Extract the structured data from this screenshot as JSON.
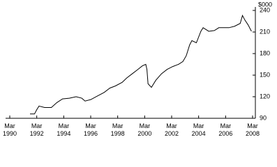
{
  "chart_data": {
    "type": "line",
    "unit_label": "$000",
    "x": [
      "1991-09",
      "1992-01",
      "1992-03",
      "1992-05",
      "1992-10",
      "1993-04",
      "1993-09",
      "1994-02",
      "1994-08",
      "1995-02",
      "1995-07",
      "1995-10",
      "1996-03",
      "1996-09",
      "1997-03",
      "1997-08",
      "1998-01",
      "1998-07",
      "1998-11",
      "1999-04",
      "1999-09",
      "2000-01",
      "2000-04",
      "2000-05",
      "2000-06",
      "2000-09",
      "2001-01",
      "2001-06",
      "2001-11",
      "2002-04",
      "2002-09",
      "2003-01",
      "2003-04",
      "2003-07",
      "2003-09",
      "2004-01",
      "2004-05",
      "2004-07",
      "2004-12",
      "2005-05",
      "2005-09",
      "2006-01",
      "2006-06",
      "2006-11",
      "2007-04",
      "2007-06",
      "2007-08",
      "2007-11",
      "2008-02"
    ],
    "series": [
      {
        "color": "#000000",
        "values": [
          96,
          96,
          102,
          107,
          105,
          105,
          112,
          117,
          118,
          120,
          118,
          114,
          116,
          121,
          126,
          132,
          135,
          140,
          146,
          152,
          158,
          163,
          165,
          158,
          138,
          133,
          143,
          152,
          158,
          162,
          165,
          169,
          177,
          192,
          198,
          195,
          211,
          216,
          211,
          212,
          216,
          216,
          216,
          218,
          222,
          233,
          227,
          220,
          211
        ]
      }
    ],
    "xlim": [
      "1990-03",
      "2008-03"
    ],
    "xticks": [
      {
        "value": "1990-03",
        "label": "Mar\n1990"
      },
      {
        "value": "1992-03",
        "label": "Mar\n1992"
      },
      {
        "value": "1994-03",
        "label": "Mar\n1994"
      },
      {
        "value": "1996-03",
        "label": "Mar\n1996"
      },
      {
        "value": "1998-03",
        "label": "Mar\n1998"
      },
      {
        "value": "2000-03",
        "label": "Mar\n2000"
      },
      {
        "value": "2002-03",
        "label": "Mar\n2002"
      },
      {
        "value": "2004-03",
        "label": "Mar\n2004"
      },
      {
        "value": "2006-03",
        "label": "Mar\n2006"
      },
      {
        "value": "2008-03",
        "label": "Mar\n2008"
      }
    ],
    "ylim": [
      90,
      240
    ],
    "yticks": [
      90,
      120,
      150,
      180,
      210,
      240
    ]
  }
}
